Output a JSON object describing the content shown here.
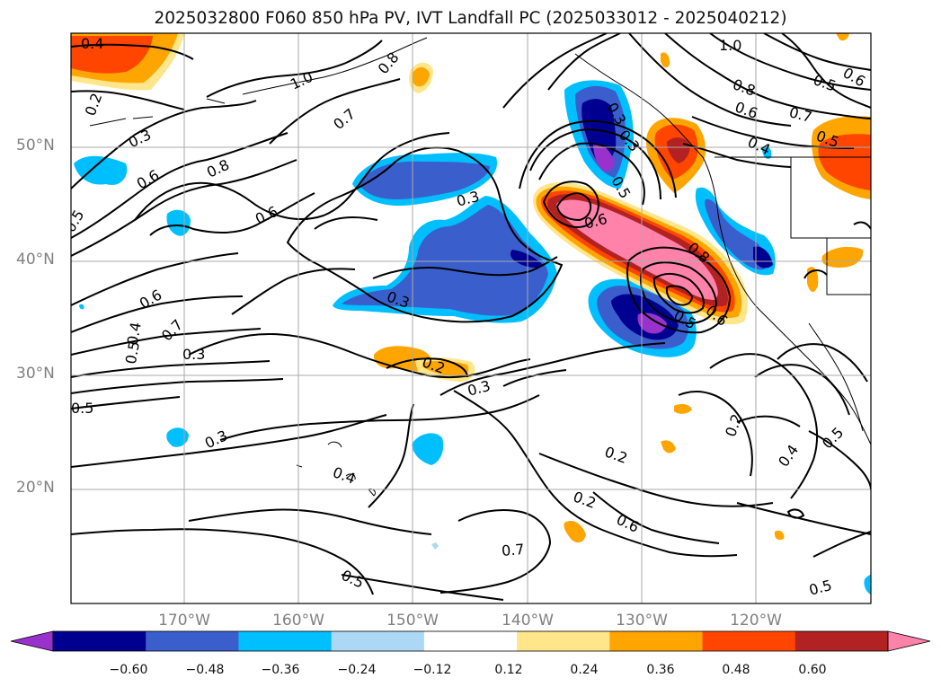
{
  "title": "2025032800 F060 850 hPa PV, IVT Landfall PC (2025033012 - 2025040212)",
  "lat_labels": [
    "50°N",
    "40°N",
    "30°N",
    "20°N"
  ],
  "lon_labels": [
    "170°W",
    "160°W",
    "150°W",
    "140°W",
    "130°W",
    "120°W"
  ],
  "contour_labels": [
    "0.4",
    "0.2",
    "0.3",
    "0.6",
    "0.8",
    "0.6",
    "1.0",
    "0.7",
    "0.8",
    "1.0",
    "0.8",
    "0.6",
    "0.7",
    "0.5",
    "0.5",
    "0.4",
    "0.6",
    "0.5",
    "0.3",
    "0.3",
    "0.6",
    "0.3",
    "0.5",
    "0.3",
    "0.8",
    "0.6",
    "0.5",
    "0.6",
    "0.7",
    "0.5",
    "0.4",
    "0.3",
    "0.2",
    "0.3",
    "0.5",
    "0.3",
    "0.4",
    "0.2",
    "0.2",
    "0.6",
    "0.7",
    "0.5",
    "0.2",
    "0.4",
    "0.5",
    "0.5"
  ],
  "colorbar": {
    "ticks": [
      "−0.60",
      "−0.48",
      "−0.36",
      "−0.24",
      "−0.12",
      "0.12",
      "0.24",
      "0.36",
      "0.48",
      "0.60"
    ],
    "colors": [
      "#9932cc",
      "#000090",
      "#3a5fcd",
      "#00bfff",
      "#add8f5",
      "#ffffff",
      "#ffe68a",
      "#ffa500",
      "#ff4500",
      "#b22222",
      "#ff82ab"
    ]
  }
}
